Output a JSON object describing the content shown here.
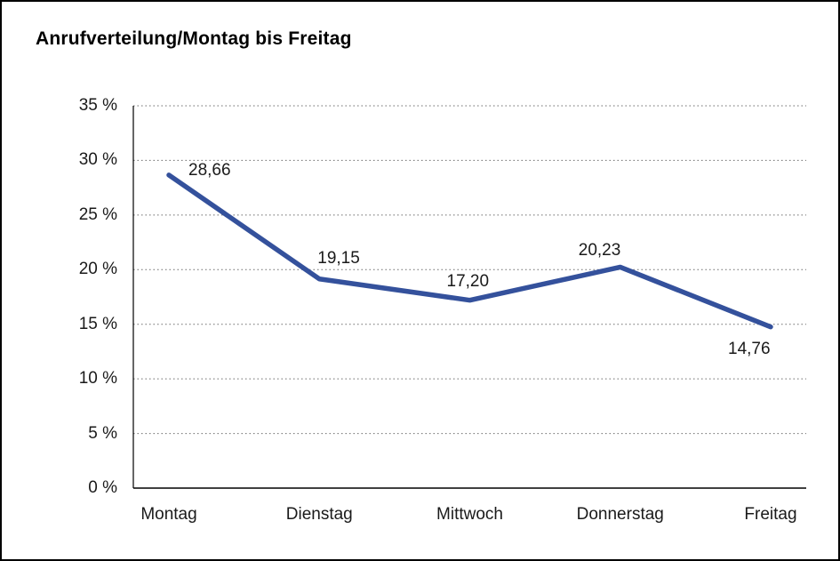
{
  "title": "Anrufverteilung/Montag bis Freitag",
  "chart_data": {
    "type": "line",
    "title": "Anrufverteilung/Montag bis Freitag",
    "categories": [
      "Montag",
      "Dienstag",
      "Mittwoch",
      "Donnerstag",
      "Freitag"
    ],
    "values": [
      28.66,
      19.15,
      17.2,
      20.23,
      14.76
    ],
    "labels": [
      "28,66",
      "19,15",
      "17,20",
      "20,23",
      "14,76"
    ],
    "xlabel": "",
    "ylabel": "",
    "ylim": [
      0,
      35
    ],
    "ytick_step": 5,
    "yticks_top_to_bottom": [
      "35 %",
      "30 %",
      "25 %",
      "20 %",
      "15 %",
      "10 %",
      "5 %",
      "0 %"
    ],
    "grid": "horizontal dotted",
    "legend": "none",
    "line_color": "#34519c",
    "axis_color": "#000000",
    "grid_color": "#6b6b6b"
  }
}
